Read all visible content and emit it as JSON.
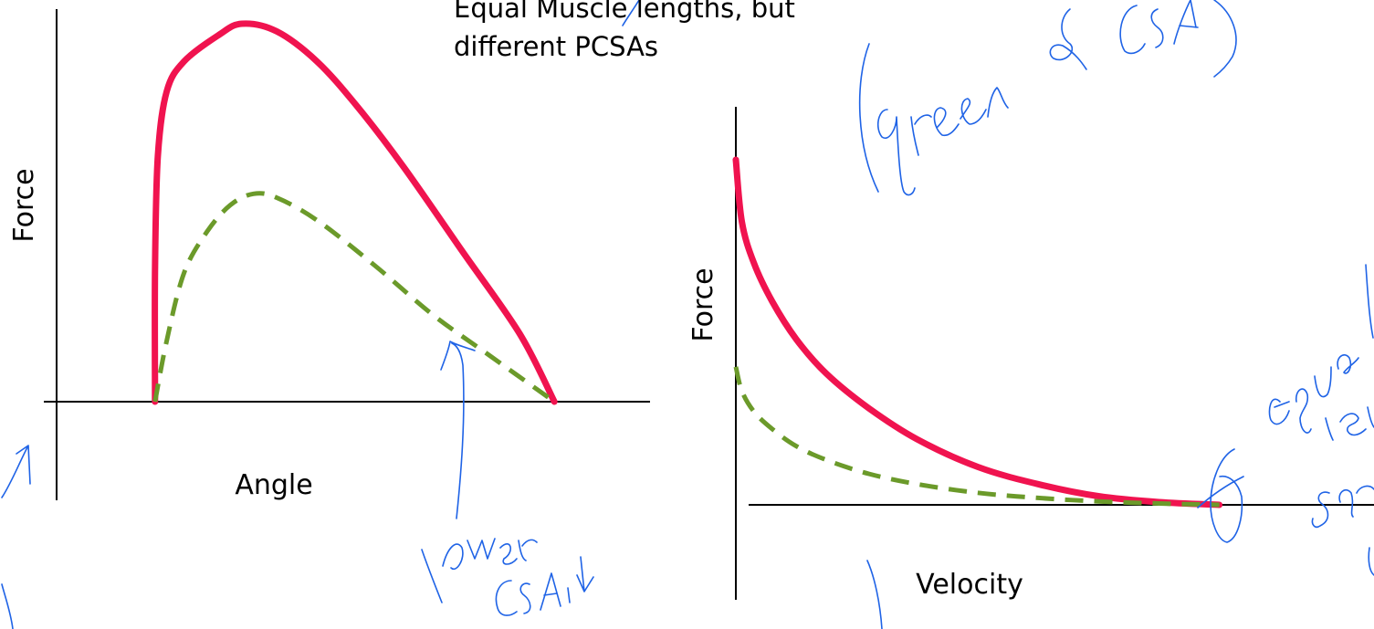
{
  "title_lines": [
    "Equal Muscle lengths, but",
    "different PCSAs"
  ],
  "colors": {
    "solid": "#f0134f",
    "dashed": "#6b9a2a",
    "axes": "#000000",
    "ink": "#1f63e6"
  },
  "chart_data": [
    {
      "type": "line",
      "title": "",
      "xlabel": "Angle",
      "ylabel": "Force",
      "grid": false,
      "legend": "none",
      "series": [
        {
          "style": "solid",
          "color": "#f0134f",
          "x": [
            0.17,
            0.17,
            0.175,
            0.19,
            0.22,
            0.28,
            0.32,
            0.38,
            0.45,
            0.52,
            0.6,
            0.7,
            0.8,
            0.86
          ],
          "y": [
            0,
            0.35,
            0.65,
            0.82,
            0.9,
            0.97,
            1.0,
            0.98,
            0.9,
            0.78,
            0.62,
            0.4,
            0.18,
            0
          ]
        },
        {
          "style": "dashed",
          "color": "#6b9a2a",
          "x": [
            0.17,
            0.19,
            0.22,
            0.26,
            0.3,
            0.34,
            0.38,
            0.45,
            0.55,
            0.65,
            0.75,
            0.86
          ],
          "y": [
            0,
            0.16,
            0.34,
            0.45,
            0.52,
            0.55,
            0.54,
            0.48,
            0.36,
            0.23,
            0.12,
            0
          ]
        }
      ]
    },
    {
      "type": "line",
      "title": "",
      "xlabel": "Velocity",
      "ylabel": "Force",
      "grid": false,
      "legend": "none",
      "series": [
        {
          "style": "solid",
          "color": "#f0134f",
          "x": [
            0,
            0.01,
            0.03,
            0.06,
            0.1,
            0.15,
            0.22,
            0.3,
            0.4,
            0.5,
            0.6,
            0.7,
            0.8
          ],
          "y": [
            1.0,
            0.82,
            0.7,
            0.59,
            0.48,
            0.38,
            0.28,
            0.19,
            0.11,
            0.06,
            0.025,
            0.008,
            0
          ]
        },
        {
          "style": "dashed",
          "color": "#6b9a2a",
          "x": [
            0,
            0.01,
            0.03,
            0.06,
            0.1,
            0.15,
            0.22,
            0.3,
            0.4,
            0.5,
            0.6,
            0.7,
            0.8
          ],
          "y": [
            0.4,
            0.33,
            0.27,
            0.22,
            0.17,
            0.13,
            0.09,
            0.06,
            0.035,
            0.02,
            0.01,
            0.004,
            0
          ]
        }
      ]
    }
  ]
}
